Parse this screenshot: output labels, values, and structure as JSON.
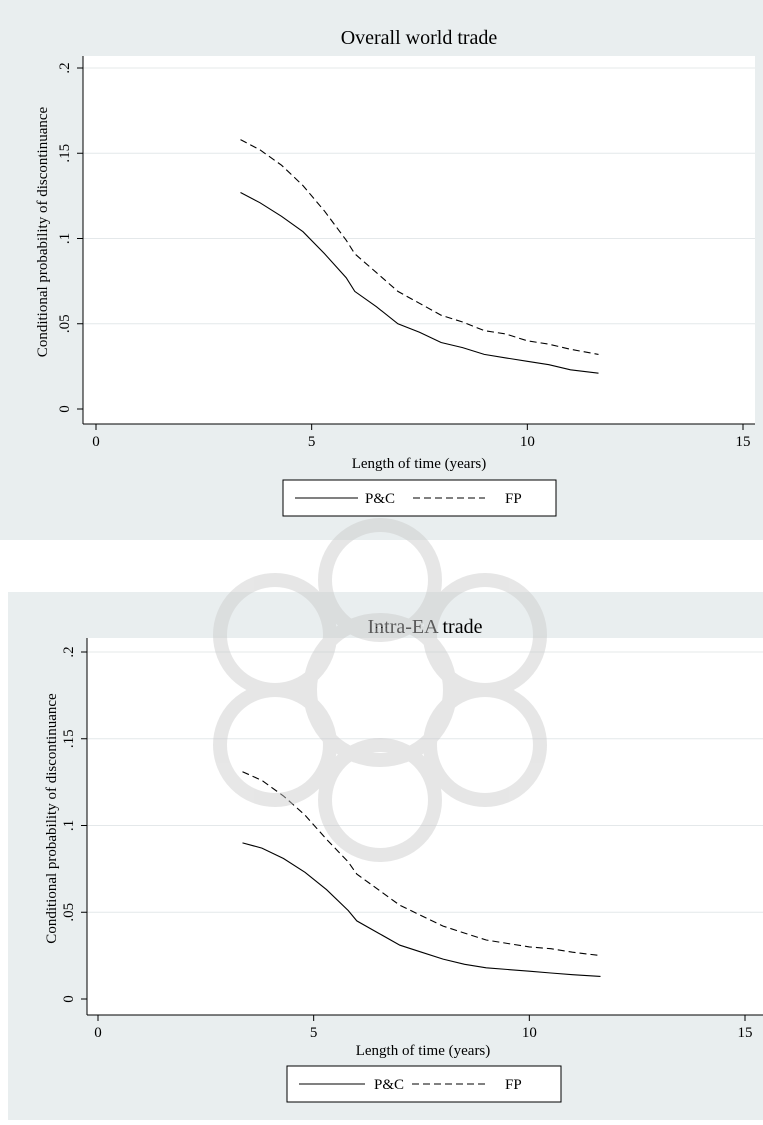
{
  "charts": [
    {
      "title": "Overall world trade",
      "xlabel": "Length of time (years)",
      "ylabel": "Conditional probability of discontinuance"
    },
    {
      "title": "Intra-EA trade",
      "xlabel": "Length of time (years)",
      "ylabel": "Conditional probability of discontinuance"
    }
  ],
  "chart_data": [
    {
      "type": "line",
      "title": "Overall world trade",
      "xlabel": "Length of time (years)",
      "ylabel": "Conditional probability of discontinuance",
      "xlim": [
        0,
        15
      ],
      "ylim": [
        0,
        0.2
      ],
      "xticks": [
        0,
        5,
        10,
        15
      ],
      "xtick_labels": [
        "0",
        "5",
        "10",
        "15"
      ],
      "yticks": [
        0,
        0.05,
        0.1,
        0.15,
        0.2
      ],
      "ytick_labels": [
        "0",
        ".05",
        ".1",
        ".15",
        ".2"
      ],
      "grid": true,
      "legend_position": "bottom-center",
      "series": [
        {
          "name": "P&C",
          "style": "solid",
          "x": [
            3.35,
            3.8,
            4.3,
            4.8,
            5.3,
            5.8,
            6.0,
            6.5,
            7.0,
            7.5,
            8.0,
            8.5,
            9.0,
            9.5,
            10.0,
            10.5,
            11.0,
            11.65
          ],
          "y": [
            0.127,
            0.121,
            0.113,
            0.104,
            0.091,
            0.077,
            0.069,
            0.06,
            0.05,
            0.045,
            0.039,
            0.036,
            0.032,
            0.03,
            0.028,
            0.026,
            0.023,
            0.021
          ]
        },
        {
          "name": "FP",
          "style": "dashed",
          "x": [
            3.35,
            3.8,
            4.3,
            4.8,
            5.3,
            5.8,
            6.0,
            6.5,
            7.0,
            7.5,
            8.0,
            8.5,
            9.0,
            9.5,
            10.0,
            10.5,
            11.0,
            11.65
          ],
          "y": [
            0.158,
            0.152,
            0.143,
            0.131,
            0.116,
            0.099,
            0.091,
            0.08,
            0.069,
            0.062,
            0.055,
            0.051,
            0.046,
            0.044,
            0.04,
            0.038,
            0.035,
            0.032
          ]
        }
      ]
    },
    {
      "type": "line",
      "title": "Intra-EA trade",
      "xlabel": "Length of time (years)",
      "ylabel": "Conditional probability of discontinuance",
      "xlim": [
        0,
        15
      ],
      "ylim": [
        0,
        0.2
      ],
      "xticks": [
        0,
        5,
        10,
        15
      ],
      "xtick_labels": [
        "0",
        "5",
        "10",
        "15"
      ],
      "yticks": [
        0,
        0.05,
        0.1,
        0.15,
        0.2
      ],
      "ytick_labels": [
        "0",
        ".05",
        ".1",
        ".15",
        ".2"
      ],
      "grid": true,
      "legend_position": "bottom-center",
      "series": [
        {
          "name": "P&C",
          "style": "solid",
          "x": [
            3.35,
            3.8,
            4.3,
            4.8,
            5.3,
            5.8,
            6.0,
            6.5,
            7.0,
            7.5,
            8.0,
            8.5,
            9.0,
            9.5,
            10.0,
            10.5,
            11.0,
            11.65
          ],
          "y": [
            0.09,
            0.087,
            0.081,
            0.073,
            0.063,
            0.051,
            0.045,
            0.038,
            0.031,
            0.027,
            0.023,
            0.02,
            0.018,
            0.017,
            0.016,
            0.015,
            0.014,
            0.013
          ]
        },
        {
          "name": "FP",
          "style": "dashed",
          "x": [
            3.35,
            3.8,
            4.3,
            4.8,
            5.3,
            5.8,
            6.0,
            6.5,
            7.0,
            7.5,
            8.0,
            8.5,
            9.0,
            9.5,
            10.0,
            10.5,
            11.0,
            11.65
          ],
          "y": [
            0.131,
            0.126,
            0.117,
            0.106,
            0.092,
            0.079,
            0.072,
            0.063,
            0.054,
            0.048,
            0.042,
            0.038,
            0.034,
            0.032,
            0.03,
            0.029,
            0.027,
            0.025
          ]
        }
      ]
    }
  ]
}
